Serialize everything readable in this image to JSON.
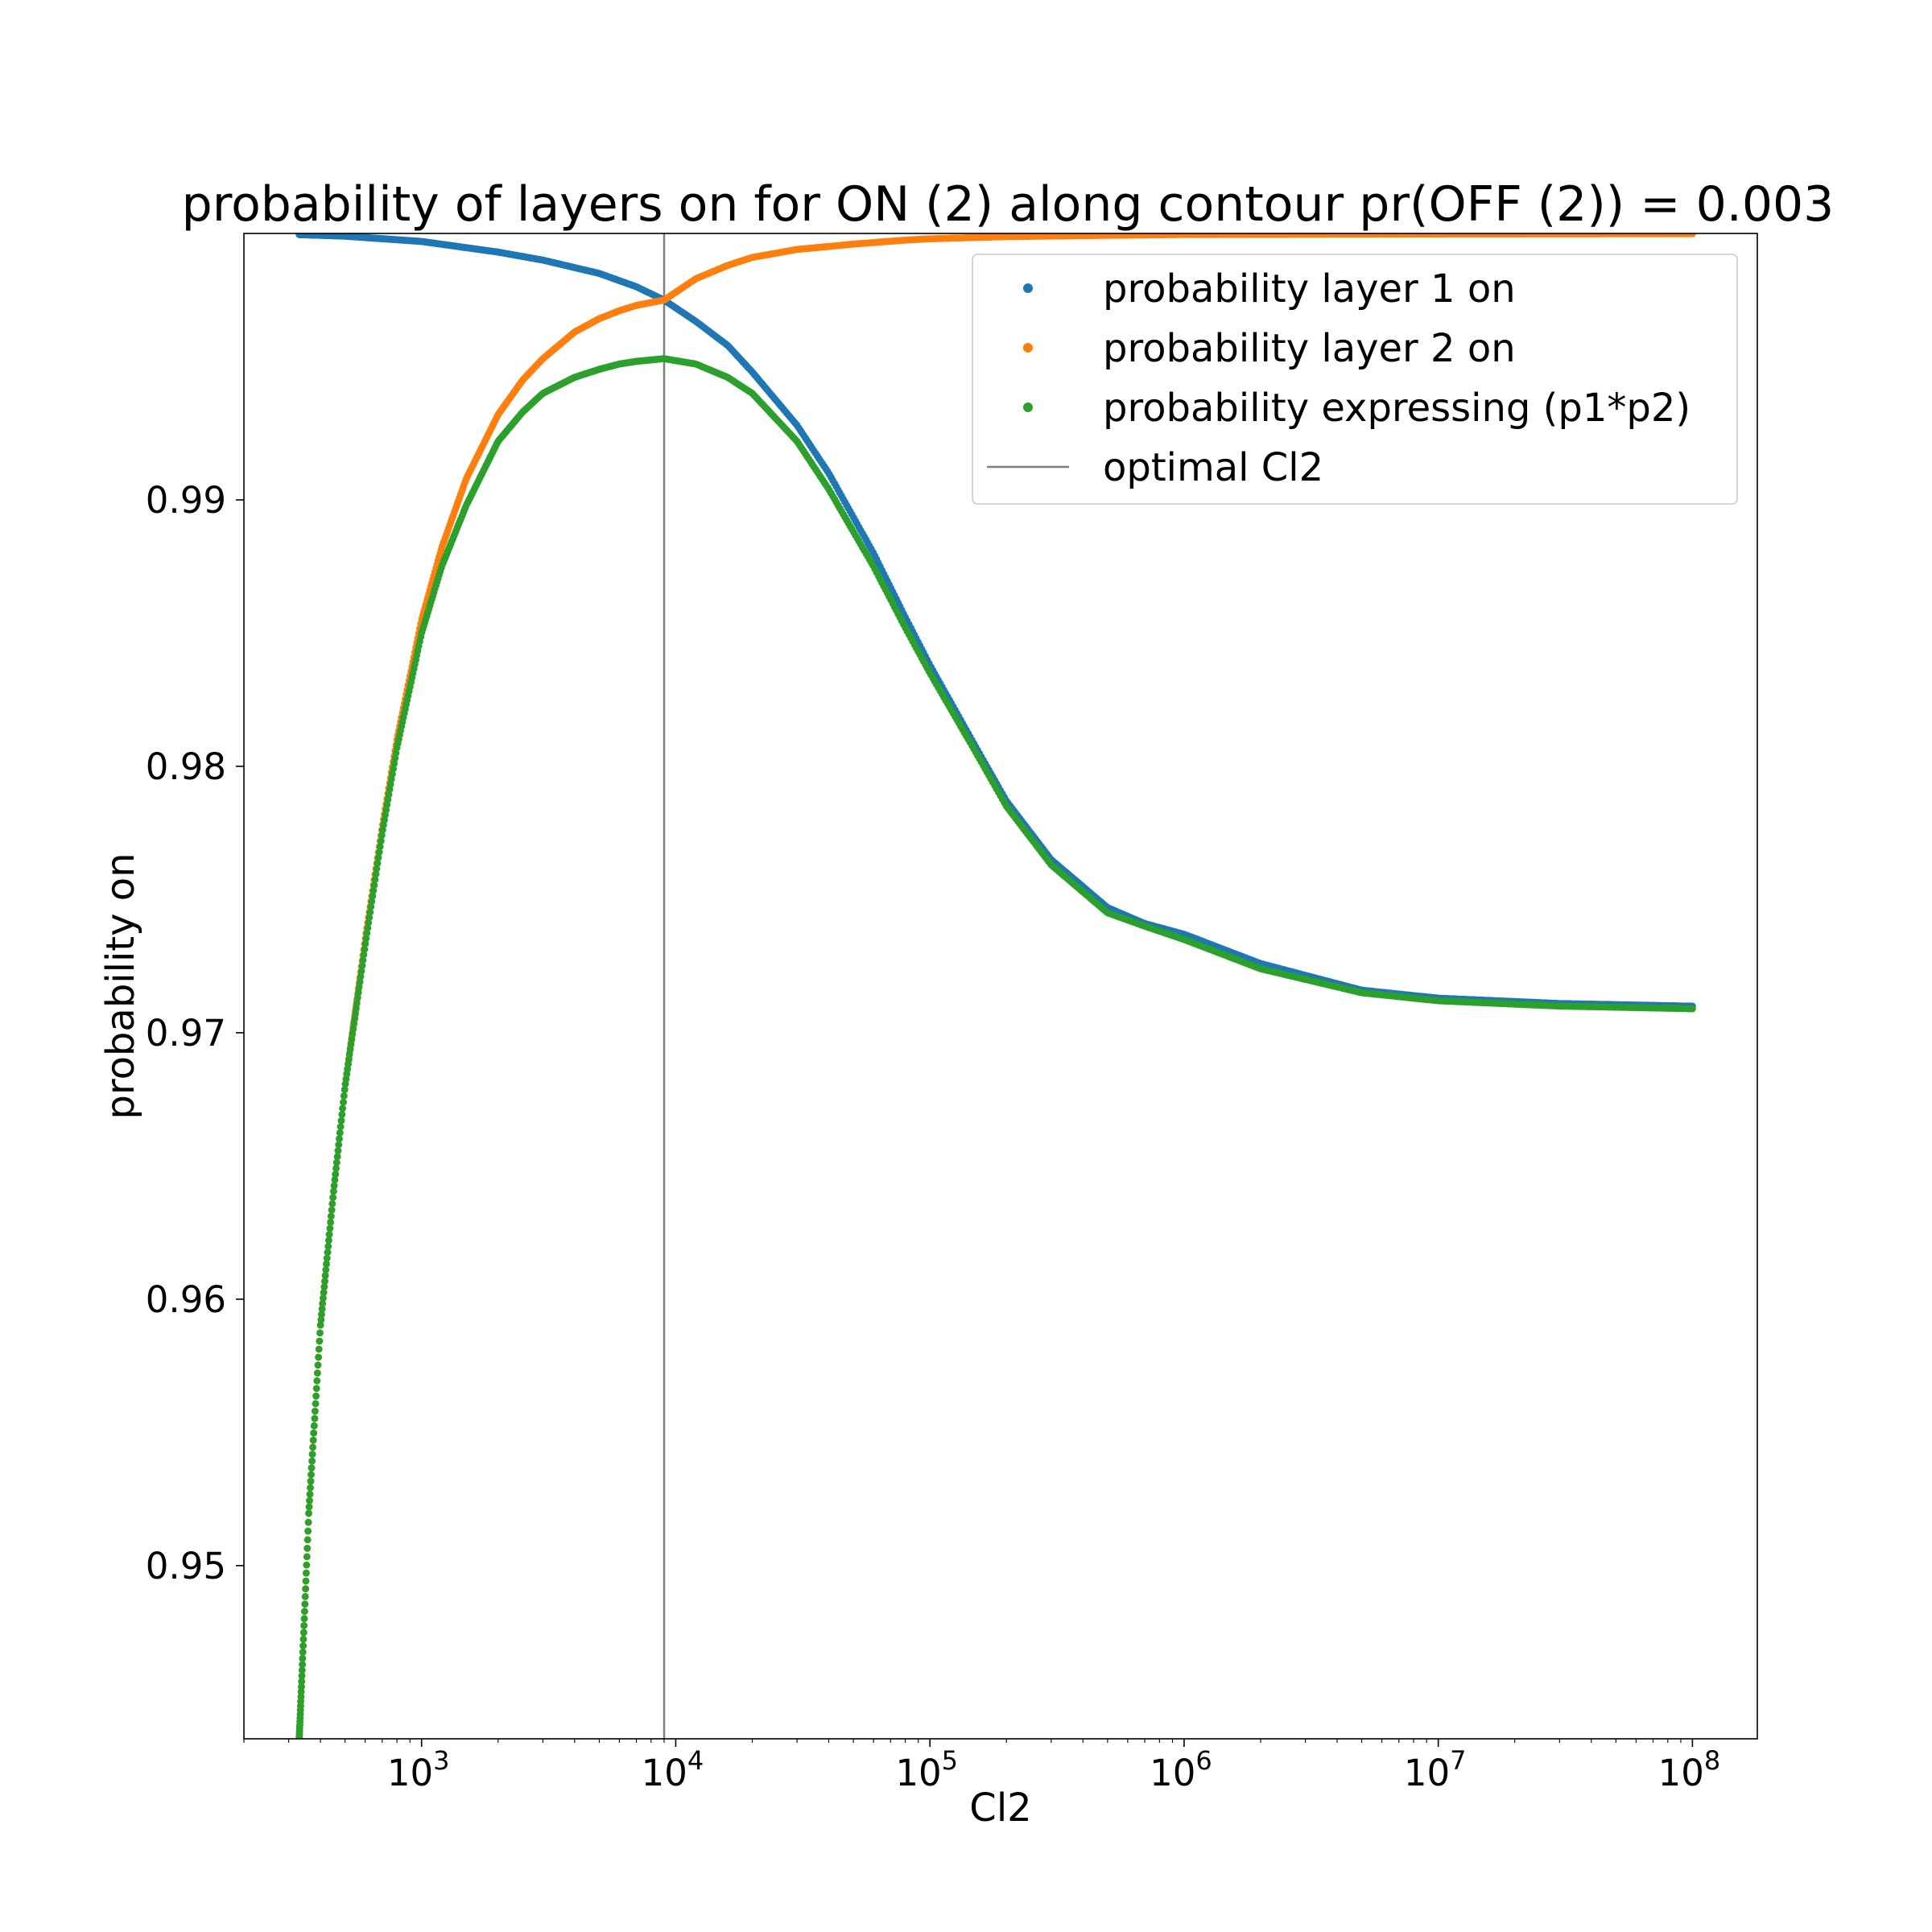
{
  "chart_data": {
    "type": "scatter",
    "title": "probability of layers on for ON (2) along contour pr(OFF (2)) = 0.003",
    "xlabel": "Cl2",
    "ylabel": "probability on",
    "xscale": "log",
    "xlim": [
      200,
      180000000
    ],
    "ylim": [
      0.9435,
      1.0
    ],
    "xticks": [
      1000,
      10000,
      100000,
      1000000,
      10000000,
      100000000
    ],
    "xtick_labels": [
      {
        "base": "10",
        "exp": "3"
      },
      {
        "base": "10",
        "exp": "4"
      },
      {
        "base": "10",
        "exp": "5"
      },
      {
        "base": "10",
        "exp": "6"
      },
      {
        "base": "10",
        "exp": "7"
      },
      {
        "base": "10",
        "exp": "8"
      }
    ],
    "yticks": [
      0.95,
      0.96,
      0.97,
      0.98,
      0.99
    ],
    "ytick_labels": [
      "0.95",
      "0.96",
      "0.97",
      "0.98",
      "0.99"
    ],
    "grid": false,
    "legend_position": "top-right",
    "optimal_x": 9000,
    "series": [
      {
        "name": "probability layer 1 on",
        "color": "#1f77b4",
        "kind": "points",
        "x": [
          330,
          500,
          1000,
          2000,
          3000,
          5000,
          7000,
          9000,
          12000,
          16000,
          20000,
          30000,
          40000,
          60000,
          80000,
          100000,
          150000,
          200000,
          300000,
          500000,
          700000,
          1000000,
          2000000,
          5000000,
          10000000,
          30000000,
          100000000
        ],
        "y": [
          0.99996,
          0.9999,
          0.9997,
          0.9993,
          0.999,
          0.9985,
          0.998,
          0.9975,
          0.9967,
          0.9958,
          0.9948,
          0.9928,
          0.991,
          0.988,
          0.9856,
          0.9838,
          0.9808,
          0.9787,
          0.9765,
          0.9747,
          0.9741,
          0.9737,
          0.9726,
          0.9716,
          0.9713,
          0.9711,
          0.971
        ]
      },
      {
        "name": "probability layer 2 on",
        "color": "#ff7f0e",
        "kind": "points",
        "x": [
          330,
          360,
          400,
          450,
          500,
          600,
          700,
          800,
          1000,
          1200,
          1500,
          2000,
          2500,
          3000,
          4000,
          5000,
          6000,
          7000,
          9000,
          12000,
          16000,
          20000,
          30000,
          50000,
          80000,
          100000,
          200000,
          500000,
          1000000,
          10000000,
          100000000
        ],
        "y": [
          0.9435,
          0.952,
          0.959,
          0.964,
          0.968,
          0.9735,
          0.9777,
          0.981,
          0.9855,
          0.9882,
          0.9908,
          0.9932,
          0.9945,
          0.9953,
          0.9963,
          0.9968,
          0.9971,
          0.9973,
          0.9975,
          0.9983,
          0.9988,
          0.9991,
          0.9994,
          0.9996,
          0.99975,
          0.9998,
          0.99988,
          0.99993,
          0.99996,
          0.99998,
          0.99999
        ]
      },
      {
        "name": "probability expressing (p1*p2)",
        "color": "#2ca02c",
        "kind": "points",
        "x": [
          330,
          360,
          400,
          450,
          500,
          600,
          700,
          800,
          1000,
          1200,
          1500,
          2000,
          2500,
          3000,
          4000,
          5000,
          6000,
          7000,
          9000,
          12000,
          16000,
          20000,
          30000,
          40000,
          60000,
          80000,
          100000,
          150000,
          200000,
          300000,
          500000,
          700000,
          1000000,
          2000000,
          5000000,
          10000000,
          30000000,
          100000000
        ],
        "y": [
          0.9435,
          0.952,
          0.959,
          0.964,
          0.968,
          0.9733,
          0.9775,
          0.9807,
          0.985,
          0.9875,
          0.9898,
          0.9922,
          0.9933,
          0.994,
          0.9946,
          0.9949,
          0.9951,
          0.9952,
          0.9953,
          0.9951,
          0.9946,
          0.994,
          0.9922,
          0.9904,
          0.9875,
          0.9852,
          0.9835,
          0.9806,
          0.9785,
          0.9763,
          0.9745,
          0.974,
          0.9735,
          0.9724,
          0.9715,
          0.9712,
          0.971,
          0.9709
        ]
      },
      {
        "name": "optimal Cl2",
        "color": "#7f7f7f",
        "kind": "vline"
      }
    ]
  }
}
